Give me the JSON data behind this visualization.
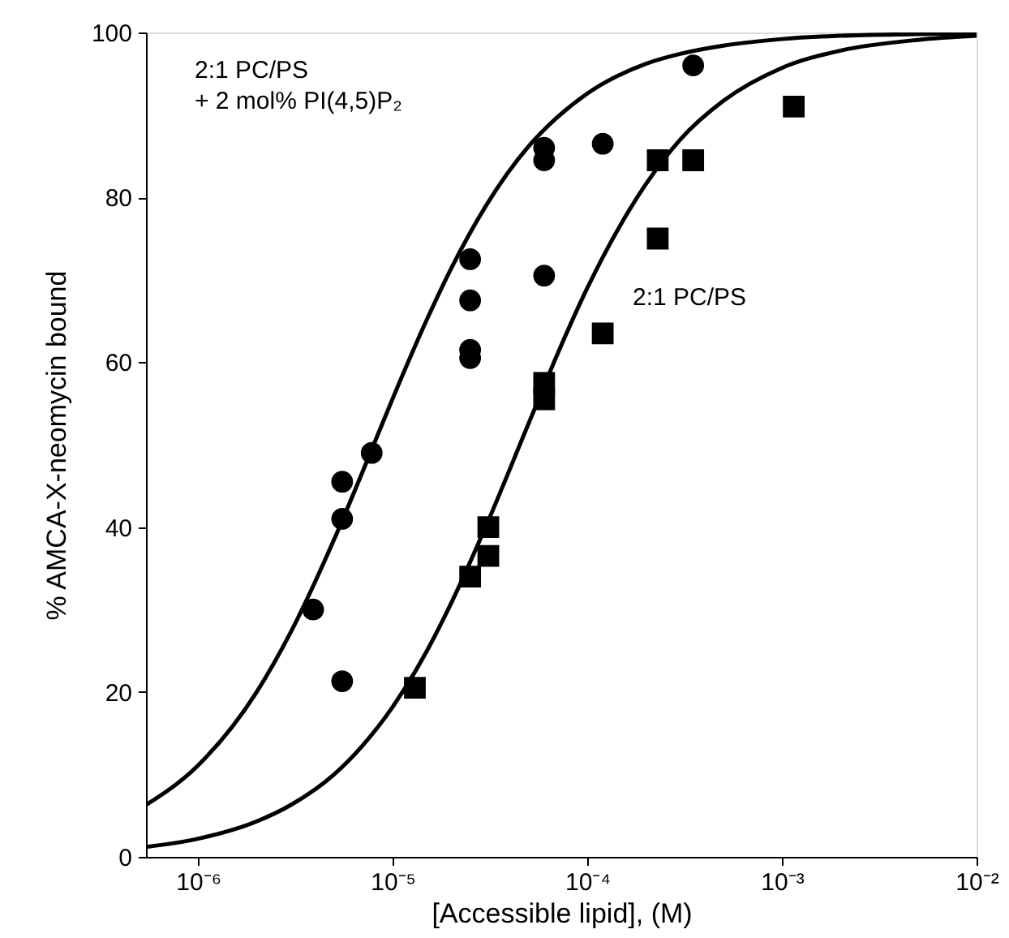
{
  "chart_data": {
    "type": "scatter",
    "xlabel": "[Accessible lipid], (M)",
    "ylabel": "% AMCA-X-neomycin bound",
    "log": "x",
    "grid": false,
    "xlim": [
      5.4e-07,
      0.01
    ],
    "ylim": [
      0,
      100
    ],
    "xticks": [
      {
        "value": 1e-06,
        "label": "10⁻⁶"
      },
      {
        "value": 1e-05,
        "label": "10⁻⁵"
      },
      {
        "value": 0.0001,
        "label": "10⁻⁴"
      },
      {
        "value": 0.001,
        "label": "10⁻³"
      },
      {
        "value": 0.01,
        "label": "10⁻²"
      }
    ],
    "yticks": [
      0,
      20,
      40,
      60,
      80,
      100
    ],
    "series": [
      {
        "marker": "circle",
        "color": "#000000",
        "x": [
          3.9e-06,
          5.5e-06,
          5.5e-06,
          5.5e-06,
          7.8e-06,
          2.5e-05,
          2.5e-05,
          2.5e-05,
          2.5e-05,
          6e-05,
          6e-05,
          6e-05,
          0.00012,
          0.00035
        ],
        "values": [
          30,
          45.5,
          41,
          21.3,
          49,
          72.5,
          67.5,
          61.5,
          60.5,
          86,
          84.5,
          70.5,
          86.5,
          96
        ]
      },
      {
        "marker": "square",
        "color": "#000000",
        "x": [
          1.3e-05,
          2.5e-05,
          3.1e-05,
          3.1e-05,
          6e-05,
          6e-05,
          0.00012,
          0.00023,
          0.00023,
          0.00035,
          0.00115
        ],
        "values": [
          20.5,
          34,
          40,
          36.5,
          57.5,
          55.5,
          63.5,
          84.5,
          75,
          84.5,
          91
        ]
      },
      {
        "type": "line",
        "marker": "none",
        "line_style": "solid",
        "color": "#000000",
        "x": [
          5.4e-07,
          1e-06,
          2e-06,
          3e-06,
          5e-06,
          7e-06,
          1e-05,
          1.5e-05,
          2e-05,
          3e-05,
          5e-05,
          7e-05,
          0.0001,
          0.0002,
          0.0003,
          0.0005,
          0.001,
          0.002,
          0.005,
          0.01
        ],
        "values": [
          6.3,
          11.1,
          20,
          27.3,
          38.5,
          46.7,
          55.6,
          65.2,
          71.4,
          78.9,
          86.2,
          89.7,
          92.6,
          96.2,
          97.4,
          98.4,
          99.2,
          99.6,
          99.8,
          99.9
        ]
      },
      {
        "type": "line",
        "marker": "none",
        "line_style": "solid",
        "color": "#000000",
        "x": [
          5.4e-07,
          1e-06,
          2e-06,
          3e-06,
          5e-06,
          7e-06,
          1e-05,
          1.5e-05,
          2e-05,
          3e-05,
          5e-05,
          7e-05,
          0.0001,
          0.0002,
          0.0003,
          0.0005,
          0.001,
          0.002,
          0.005,
          0.01
        ],
        "values": [
          1.2,
          2.2,
          4.3,
          6.3,
          10,
          13.5,
          18.2,
          25,
          30.8,
          40,
          52.6,
          60.9,
          69,
          81.6,
          87,
          91.7,
          95.7,
          97.8,
          99.1,
          99.6
        ]
      }
    ],
    "annotations": [
      "2:1 PC/PS\n+ 2 mol% PI(4,5)P₂",
      "2:1 PC/PS"
    ]
  }
}
